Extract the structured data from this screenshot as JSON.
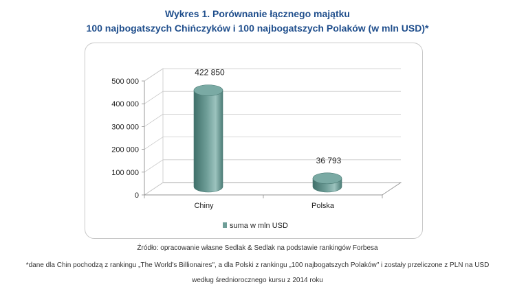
{
  "title": {
    "line1": "Wykres 1. Porównanie łącznego majątku",
    "line2": "100 najbogatszych Chińczyków i 100 najbogatszych Polaków (w mln USD)*"
  },
  "notes": {
    "source": "Źródło: opracowanie własne Sedlak & Sedlak na podstawie rankingów Forbesa",
    "footnote_line1": "*dane dla Chin pochodzą z rankingu „The World's Billionaires\", a dla Polski z rankingu „100 najbogatszych Polaków\" i zostały przeliczone z PLN na USD",
    "footnote_line2": "według średniorocznego kursu z 2014 roku"
  },
  "chart_data": {
    "type": "bar",
    "style": "3d-cylinder",
    "categories": [
      "Chiny",
      "Polska"
    ],
    "series": [
      {
        "name": "suma w mln USD",
        "values": [
          422850,
          36793
        ],
        "color": "#6f9e98"
      }
    ],
    "data_labels": [
      "422 850",
      "36 793"
    ],
    "ylim": [
      0,
      500000
    ],
    "yticks": [
      0,
      100000,
      200000,
      300000,
      400000,
      500000
    ],
    "ytick_labels": [
      "0",
      "100 000",
      "200 000",
      "300 000",
      "400 000",
      "500 000"
    ],
    "grid": true,
    "legend": "bottom"
  }
}
